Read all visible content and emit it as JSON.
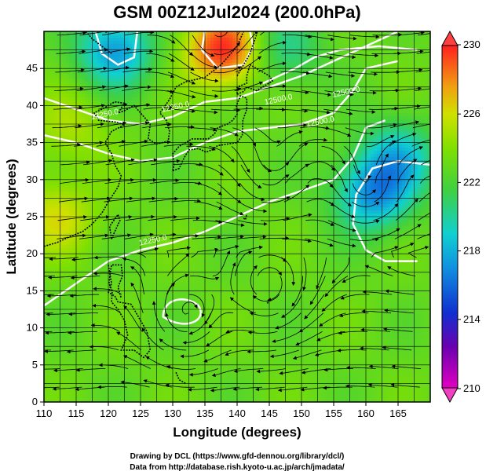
{
  "chart_data": {
    "type": "heatmap",
    "title": "GSM 00Z12Jul2024 (200.0hPa)",
    "xlabel": "Longitude (degrees)",
    "ylabel": "Latitude  (degrees)",
    "xlim": [
      110,
      170
    ],
    "ylim": [
      0,
      50
    ],
    "xticks": [
      "110",
      "115",
      "120",
      "125",
      "130",
      "135",
      "140",
      "145",
      "150",
      "155",
      "160",
      "165"
    ],
    "yticks": [
      "0",
      "5",
      "10",
      "15",
      "20",
      "25",
      "30",
      "35",
      "40",
      "45"
    ],
    "grid": true,
    "colorbar": {
      "ticks": [
        "210",
        "214",
        "218",
        "222",
        "226",
        "230"
      ],
      "range": [
        210,
        230
      ],
      "placement": "right"
    },
    "contour_labels": [
      "12250.0",
      "12250.0",
      "12500.0",
      "12500.0",
      "12250.0",
      "12500.0"
    ],
    "hotspots": [
      {
        "lon": 138.0,
        "lat": 47.5,
        "value": 230
      },
      {
        "lon": 161.0,
        "lat": 28.0,
        "value": 217.5
      },
      {
        "lon": 121.0,
        "lat": 47.5,
        "value": 217.5
      },
      {
        "lon": 147.0,
        "lat": 47.5,
        "value": 220
      },
      {
        "lon": 112.0,
        "lat": 25.0,
        "value": 226
      },
      {
        "lon": 114.0,
        "lat": 37.0,
        "value": 225
      },
      {
        "lon": 165.0,
        "lat": 33.0,
        "value": 219
      }
    ],
    "base_value": 223
  },
  "credits": {
    "line1": "Drawing by DCL (https://www.gfd-dennou.org/library/dcl/)",
    "line2": "Data from http://database.rish.kyoto-u.ac.jp/arch/jmadata/"
  }
}
